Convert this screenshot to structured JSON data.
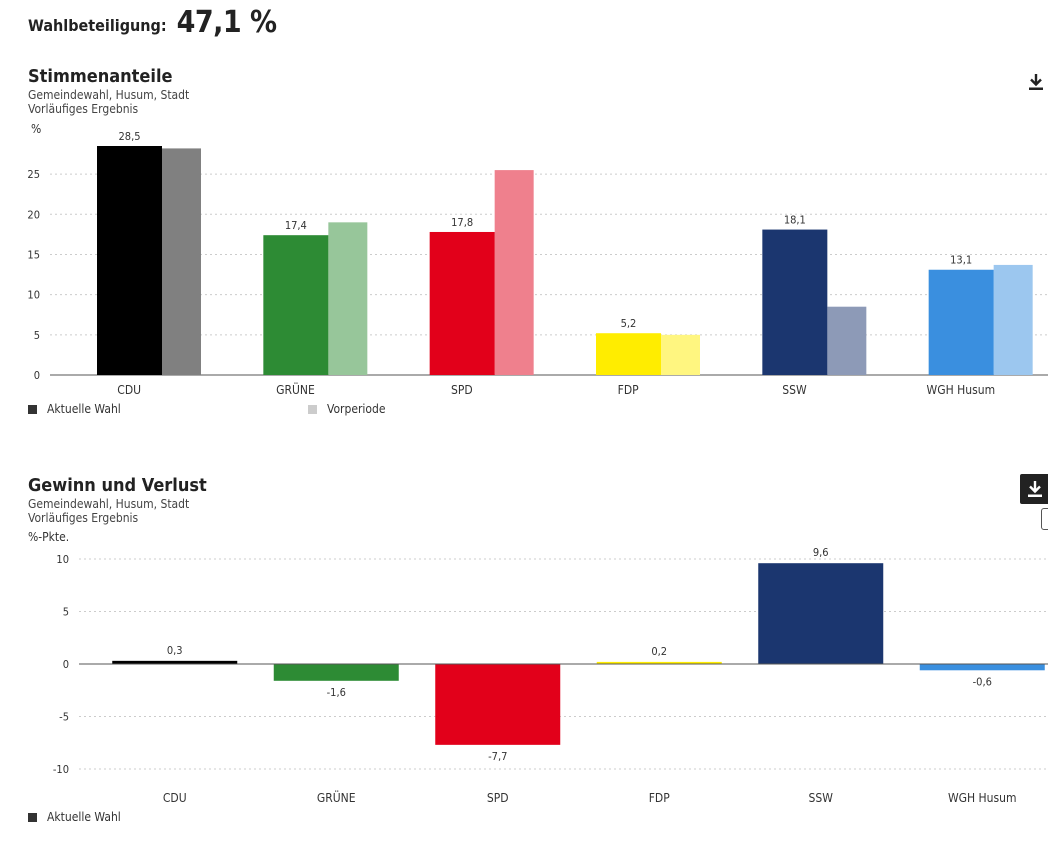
{
  "turnout": {
    "label": "Wahlbeteiligung:",
    "value": "47,1 %"
  },
  "icons": {
    "download": "download-icon"
  },
  "colors": {
    "legend_current": "#333333",
    "legend_previous": "#cccccc",
    "grid": "#cccccc",
    "axis": "#555555"
  },
  "chart_data": [
    {
      "type": "bar",
      "title": "Stimmenanteile",
      "subtitle": [
        "Gemeindewahl, Husum, Stadt",
        "Vorläufiges Ergebnis"
      ],
      "ylabel": "%",
      "ylim": [
        0,
        28.5
      ],
      "yticks": [
        0,
        5,
        10,
        15,
        20,
        25
      ],
      "categories": [
        "CDU",
        "GRÜNE",
        "SPD",
        "FDP",
        "SSW",
        "WGH Husum"
      ],
      "series": [
        {
          "name": "Aktuelle Wahl",
          "values": [
            28.5,
            17.4,
            17.8,
            5.2,
            18.1,
            13.1
          ],
          "labels": [
            "28,5",
            "17,4",
            "17,8",
            "5,2",
            "18,1",
            "13,1"
          ],
          "colors": [
            "#000000",
            "#2d8b34",
            "#e2001a",
            "#ffed00",
            "#1b366f",
            "#3a8fdf"
          ]
        },
        {
          "name": "Vorperiode",
          "values": [
            28.2,
            19.0,
            25.5,
            5.0,
            8.5,
            13.7
          ],
          "colors": [
            "#808080",
            "#97c69a",
            "#ef808d",
            "#fff680",
            "#8d9ab7",
            "#9cc7ef"
          ]
        }
      ],
      "grid": true,
      "legend": "bottom-left"
    },
    {
      "type": "bar",
      "title": "Gewinn und Verlust",
      "subtitle": [
        "Gemeindewahl, Husum, Stadt",
        "Vorläufiges Ergebnis"
      ],
      "ylabel": "%-Pkte.",
      "ylim": [
        -10,
        10
      ],
      "yticks": [
        -10,
        -5,
        0,
        5,
        10
      ],
      "categories": [
        "CDU",
        "GRÜNE",
        "SPD",
        "FDP",
        "SSW",
        "WGH Husum"
      ],
      "series": [
        {
          "name": "Aktuelle Wahl",
          "values": [
            0.3,
            -1.6,
            -7.7,
            0.2,
            9.6,
            -0.6
          ],
          "labels": [
            "0,3",
            "-1,6",
            "-7,7",
            "0,2",
            "9,6",
            "-0,6"
          ],
          "colors": [
            "#000000",
            "#2d8b34",
            "#e2001a",
            "#ffed00",
            "#1b366f",
            "#3a8fdf"
          ]
        }
      ],
      "grid": true,
      "legend": "bottom-left"
    }
  ]
}
